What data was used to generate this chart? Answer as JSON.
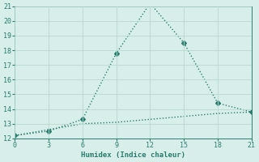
{
  "line1_x": [
    0,
    3,
    6,
    9,
    12,
    15,
    18,
    21
  ],
  "line1_y": [
    12.2,
    12.5,
    13.3,
    17.8,
    21.2,
    18.5,
    14.4,
    13.8
  ],
  "line2_x": [
    0,
    3,
    6,
    9,
    12,
    15,
    18,
    21
  ],
  "line2_y": [
    12.2,
    12.6,
    13.0,
    13.1,
    13.3,
    13.5,
    13.7,
    13.8
  ],
  "line_color": "#2a7d6e",
  "bg_color": "#d8eeea",
  "grid_color": "#b8d8d2",
  "xlabel": "Humidex (Indice chaleur)",
  "xlim": [
    0,
    21
  ],
  "ylim": [
    12,
    21
  ],
  "xticks": [
    0,
    3,
    6,
    9,
    12,
    15,
    18,
    21
  ],
  "yticks": [
    12,
    13,
    14,
    15,
    16,
    17,
    18,
    19,
    20,
    21
  ],
  "markersize": 3,
  "linewidth": 1.0
}
